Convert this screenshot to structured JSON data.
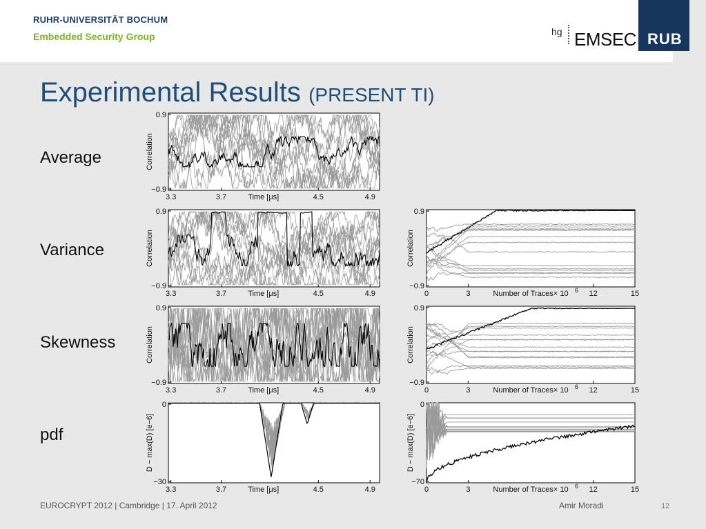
{
  "header": {
    "university": "RUHR-UNIVERSITÄT BOCHUM",
    "group": "Embedded Security Group",
    "logo_hg": "hg",
    "logo_emsec": "EMSEC",
    "logo_rub": "RUB"
  },
  "title": {
    "main": "Experimental Results",
    "sub": "(PRESENT TI)"
  },
  "row_labels": [
    "Average",
    "Variance",
    "Skewness",
    "pdf"
  ],
  "footer": {
    "event": "EUROCRYPT 2012 | Cambridge | 17. April 2012",
    "author": "Amir Moradi",
    "page": "12"
  },
  "colors": {
    "title": "#1f4e79",
    "university": "#1f3d6a",
    "group": "#7ab51d",
    "rub_box": "#17365d"
  },
  "left_plots": {
    "xlabel": "Time [μs]",
    "xticks": [
      "3.3",
      "3.7",
      "4.5",
      "4.9"
    ],
    "rows": [
      {
        "ylabel": "Correlation",
        "yticks": [
          "0.9",
          "−0.9"
        ]
      },
      {
        "ylabel": "Correlation",
        "yticks": [
          "0.9",
          "−0.9"
        ]
      },
      {
        "ylabel": "Correlation",
        "yticks": [
          "0.9",
          "−0.9"
        ]
      },
      {
        "ylabel": "D − max(D) [e−6]",
        "yticks": [
          "0",
          "−30"
        ]
      }
    ]
  },
  "right_plots": {
    "xlabel": "Number of Traces× 10",
    "xlabel_exp": "6",
    "xticks": [
      "0",
      "3",
      "12",
      "15"
    ],
    "rows": [
      {
        "ylabel": "Correlation",
        "yticks": [
          "0.9",
          "−0.9"
        ]
      },
      {
        "ylabel": "Correlation",
        "yticks": [
          "0.9",
          "−0.9"
        ]
      },
      {
        "ylabel": "D − max(D) [e−6]",
        "yticks": [
          "0",
          "−70"
        ]
      }
    ]
  }
}
